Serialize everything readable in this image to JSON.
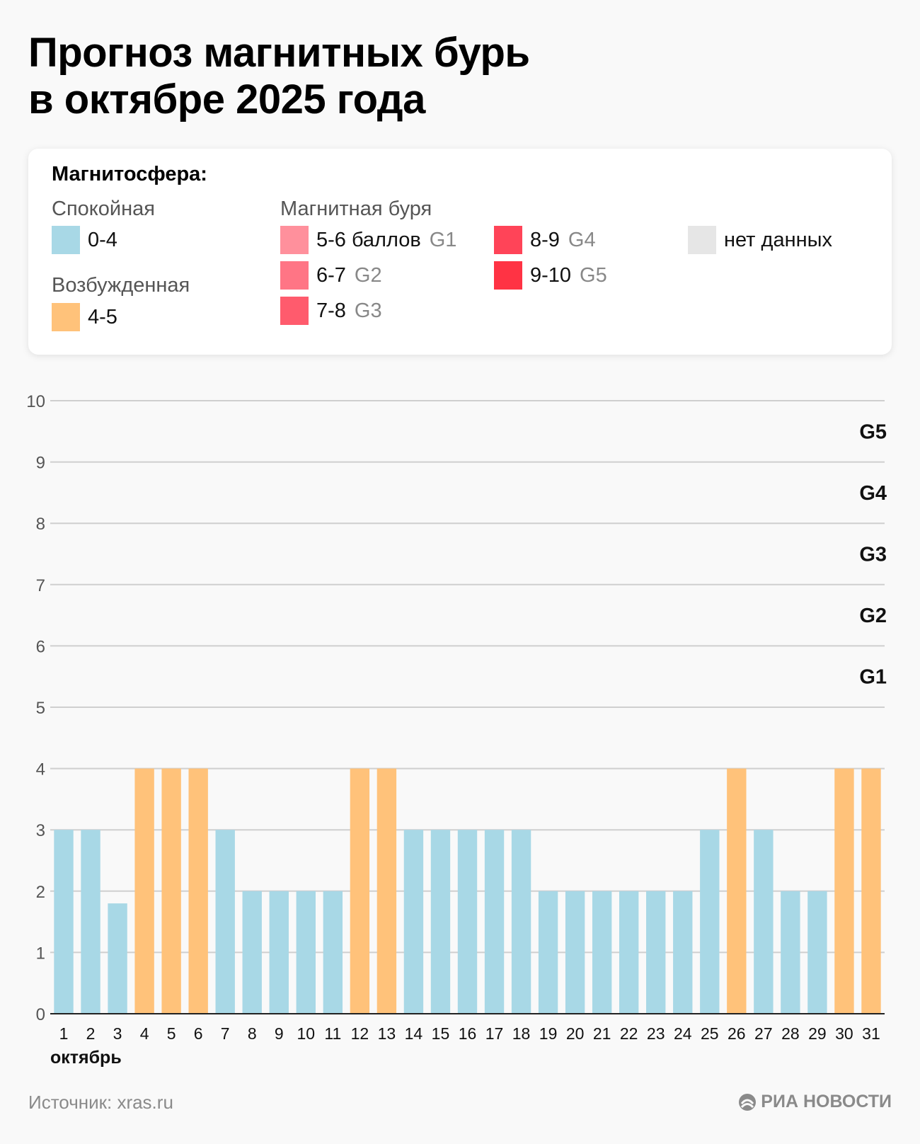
{
  "title": {
    "line1": "Прогноз магнитных бурь",
    "line2": "в октябре 2025 года"
  },
  "legend": {
    "heading": "Магнитосфера:",
    "calm_label": "Спокойная",
    "calm_range": "0-4",
    "calm_color": "#a8d8e6",
    "excited_label": "Возбужденная",
    "excited_range": "4-5",
    "excited_color": "#ffc27a",
    "storm_label": "Магнитная буря",
    "storm_items": [
      {
        "range": "5-6 баллов",
        "code": "G1",
        "color": "#ff909c"
      },
      {
        "range": "6-7",
        "code": "G2",
        "color": "#ff7585"
      },
      {
        "range": "7-8",
        "code": "G3",
        "color": "#ff5b6d"
      },
      {
        "range": "8-9",
        "code": "G4",
        "color": "#ff4458"
      },
      {
        "range": "9-10",
        "code": "G5",
        "color": "#ff3344"
      }
    ],
    "nodata_label": "нет данных",
    "nodata_color": "#e6e6e6"
  },
  "chart_data": {
    "type": "bar",
    "categories": [
      "1",
      "2",
      "3",
      "4",
      "5",
      "6",
      "7",
      "8",
      "9",
      "10",
      "11",
      "12",
      "13",
      "14",
      "15",
      "16",
      "17",
      "18",
      "19",
      "20",
      "21",
      "22",
      "23",
      "24",
      "25",
      "26",
      "27",
      "28",
      "29",
      "30",
      "31"
    ],
    "values": [
      3,
      3,
      1.8,
      4,
      4,
      4,
      3,
      2,
      2,
      2,
      2,
      4,
      4,
      3,
      3,
      3,
      3,
      3,
      2,
      2,
      2,
      2,
      2,
      2,
      3,
      4,
      3,
      2,
      2,
      4,
      4
    ],
    "colors_by_value": {
      "calm_max": 3,
      "calm_color": "#a8d8e6",
      "excited_color": "#ffc27a"
    },
    "ylim": [
      0,
      10
    ],
    "yticks": [
      "0",
      "1",
      "2",
      "3",
      "4",
      "5",
      "6",
      "7",
      "8",
      "9",
      "10"
    ],
    "xlabel": "октябрь",
    "ylabel": "",
    "g_levels": [
      "G1",
      "G2",
      "G3",
      "G4",
      "G5"
    ],
    "grid": true
  },
  "footer": {
    "source": "Источник: xras.ru",
    "brand": "РИА НОВОСТИ"
  }
}
